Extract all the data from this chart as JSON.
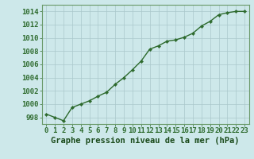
{
  "x": [
    0,
    1,
    2,
    3,
    4,
    5,
    6,
    7,
    8,
    9,
    10,
    11,
    12,
    13,
    14,
    15,
    16,
    17,
    18,
    19,
    20,
    21,
    22,
    23
  ],
  "y": [
    998.5,
    998.0,
    997.5,
    999.5,
    1000.0,
    1000.5,
    1001.2,
    1001.8,
    1003.0,
    1004.0,
    1005.2,
    1006.5,
    1008.3,
    1008.8,
    1009.5,
    1009.7,
    1010.1,
    1010.7,
    1011.8,
    1012.5,
    1013.5,
    1013.8,
    1014.0,
    1014.0
  ],
  "line_color": "#2d6a2d",
  "marker": "D",
  "marker_size": 2.2,
  "bg_color": "#cde8ea",
  "grid_color": "#aac8cb",
  "xlabel": "Graphe pression niveau de la mer (hPa)",
  "xlabel_color": "#1a4a1a",
  "xlabel_fontsize": 7.5,
  "ylabel_ticks": [
    998,
    1000,
    1002,
    1004,
    1006,
    1008,
    1010,
    1012,
    1014
  ],
  "xtick_labels": [
    "0",
    "1",
    "2",
    "3",
    "4",
    "5",
    "6",
    "7",
    "8",
    "9",
    "10",
    "11",
    "12",
    "13",
    "14",
    "15",
    "16",
    "17",
    "18",
    "19",
    "20",
    "21",
    "22",
    "23"
  ],
  "ylim": [
    997.0,
    1015.0
  ],
  "xlim": [
    -0.5,
    23.5
  ],
  "tick_color": "#2d6a2d",
  "tick_fontsize": 6.5,
  "spine_color": "#6a9a6a",
  "line_width": 1.0
}
